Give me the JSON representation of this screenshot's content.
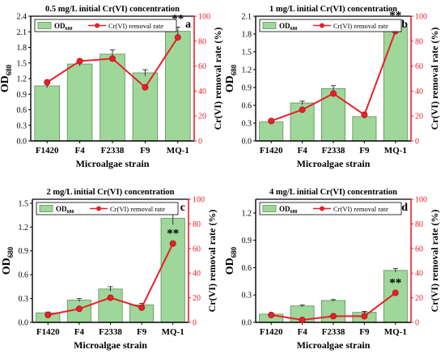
{
  "figure": {
    "colors": {
      "bar_fill": "#9fd79a",
      "bar_stroke": "#5d8f5a",
      "line": "#e8202a",
      "marker": "#e8202a",
      "axis": "#000000",
      "right_axis": "#e8202a"
    },
    "legend": {
      "od_base": "OD",
      "od_sub": "680",
      "rate_label": "Cr(VI) removal rate"
    }
  },
  "chart_data": [
    {
      "type": "bar",
      "title": "0.5 mg/L initial Cr(VI) concentration",
      "panel_letter": "a",
      "categories": [
        "F1420",
        "F4",
        "F2338",
        "F9",
        "MQ-1"
      ],
      "xlabel": "Microalgae strain",
      "ylabel": {
        "base": "OD",
        "sub": "680"
      },
      "y2label": "Cr(VI) removal rate (%)",
      "ylim": [
        0,
        2.4
      ],
      "yticks": [
        "0.0",
        "0.3",
        "0.6",
        "0.9",
        "1.2",
        "1.5",
        "1.8",
        "2.1",
        "2.4"
      ],
      "y2lim": [
        0,
        100
      ],
      "y2ticks": [
        "0",
        "20",
        "40",
        "60",
        "80",
        "100"
      ],
      "series": [
        {
          "name": "OD680",
          "kind": "bar",
          "values": [
            1.06,
            1.48,
            1.67,
            1.31,
            2.11
          ],
          "errors": [
            0.04,
            0.04,
            0.08,
            0.06,
            0.08
          ]
        },
        {
          "name": "Cr(VI) removal rate",
          "kind": "line",
          "axis": "right",
          "values": [
            47,
            64,
            66,
            43,
            83
          ]
        }
      ],
      "annotations": [
        {
          "category": "MQ-1",
          "text": "**"
        }
      ]
    },
    {
      "type": "bar",
      "title": "1 mg/L initial Cr(VI) concentration",
      "panel_letter": "b",
      "categories": [
        "F1420",
        "F4",
        "F2338",
        "F9",
        "MQ-1"
      ],
      "xlabel": "Microalgae strain",
      "ylabel": {
        "base": "OD",
        "sub": "680"
      },
      "y2label": "Cr(VI) removal rate (%)",
      "ylim": [
        0,
        2.1
      ],
      "yticks": [
        "0.0",
        "0.3",
        "0.6",
        "0.9",
        "1.2",
        "1.5",
        "1.8",
        "2.1"
      ],
      "y2lim": [
        0,
        100
      ],
      "y2ticks": [
        "0",
        "20",
        "40",
        "60",
        "80",
        "100"
      ],
      "series": [
        {
          "name": "OD680",
          "kind": "bar",
          "values": [
            0.32,
            0.64,
            0.88,
            0.41,
            1.92
          ],
          "errors": [
            0.02,
            0.03,
            0.05,
            0.03,
            0.05
          ]
        },
        {
          "name": "Cr(VI) removal rate",
          "kind": "line",
          "axis": "right",
          "values": [
            16,
            25,
            38,
            21,
            88
          ]
        }
      ],
      "annotations": [
        {
          "category": "MQ-1",
          "text": "**"
        }
      ]
    },
    {
      "type": "bar",
      "title": "2 mg/L  initial Cr(VI) concentration",
      "panel_letter": "c",
      "categories": [
        "F1420",
        "F4",
        "F2338",
        "F9",
        "MQ-1"
      ],
      "xlabel": "Microalgae strain",
      "ylabel": {
        "base": "OD",
        "sub": "680"
      },
      "y2label": "Cr(VI) removal rate (%)",
      "ylim": [
        0,
        1.55
      ],
      "yticks": [
        "0.0",
        "0.3",
        "0.6",
        "0.9",
        "1.2",
        "1.5"
      ],
      "y2lim": [
        0,
        100
      ],
      "y2ticks": [
        "0",
        "20",
        "40",
        "60",
        "80",
        "100"
      ],
      "series": [
        {
          "name": "OD680",
          "kind": "bar",
          "values": [
            0.12,
            0.28,
            0.42,
            0.22,
            1.31
          ],
          "errors": [
            0.01,
            0.02,
            0.03,
            0.02,
            0.08
          ]
        },
        {
          "name": "Cr(VI) removal rate",
          "kind": "line",
          "axis": "right",
          "values": [
            6,
            11,
            20,
            12,
            64
          ]
        }
      ],
      "annotations": [
        {
          "category": "MQ-1",
          "text": "**"
        }
      ]
    },
    {
      "type": "bar",
      "title": "4 mg/L initial Cr(VI) concentration",
      "panel_letter": "d",
      "categories": [
        "F1420",
        "F4",
        "F2338",
        "F9",
        "MQ-1"
      ],
      "xlabel": "Microalgae strain",
      "ylabel": {
        "base": "OD",
        "sub": "680"
      },
      "y2label": "Cr(VI) removal rate (%)",
      "ylim": [
        0,
        1.35
      ],
      "yticks": [
        "0.0",
        "0.3",
        "0.6",
        "0.9",
        "1.2"
      ],
      "y2lim": [
        0,
        100
      ],
      "y2ticks": [
        "0",
        "20",
        "40",
        "60",
        "80",
        "100"
      ],
      "series": [
        {
          "name": "OD680",
          "kind": "bar",
          "values": [
            0.09,
            0.18,
            0.24,
            0.11,
            0.57
          ],
          "errors": [
            0.01,
            0.01,
            0.01,
            0.01,
            0.02
          ]
        },
        {
          "name": "Cr(VI) removal rate",
          "kind": "line",
          "axis": "right",
          "values": [
            6,
            2,
            5,
            5,
            24
          ]
        }
      ],
      "annotations": [
        {
          "category": "MQ-1",
          "text": "**"
        }
      ]
    }
  ]
}
